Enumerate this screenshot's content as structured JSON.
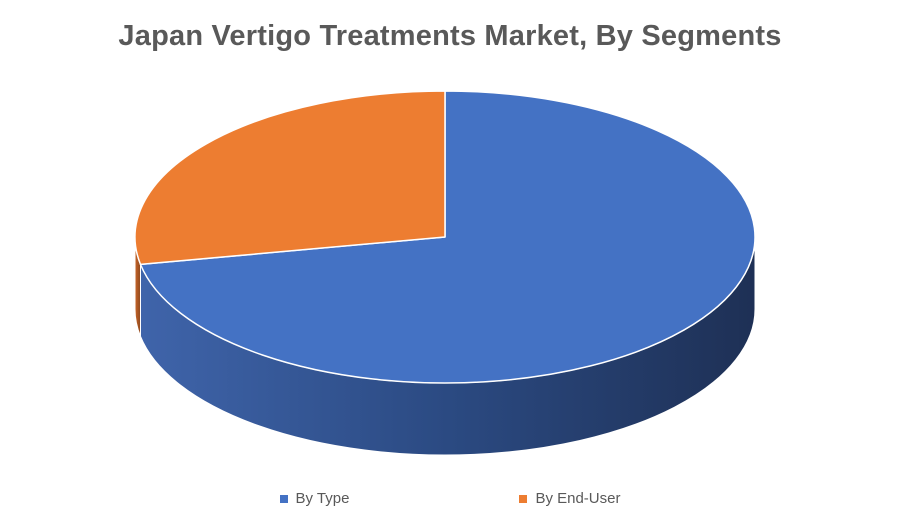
{
  "chart_data": {
    "type": "pie",
    "title": "Japan Vertigo Treatments Market, By Segments",
    "style": "3d",
    "start_angle": "12 o'clock, clockwise",
    "series": [
      {
        "name": "By Type",
        "value": 72,
        "color": "#4472c4"
      },
      {
        "name": "By End-User",
        "value": 28,
        "color": "#ed7d31"
      }
    ],
    "legend_position": "bottom"
  }
}
